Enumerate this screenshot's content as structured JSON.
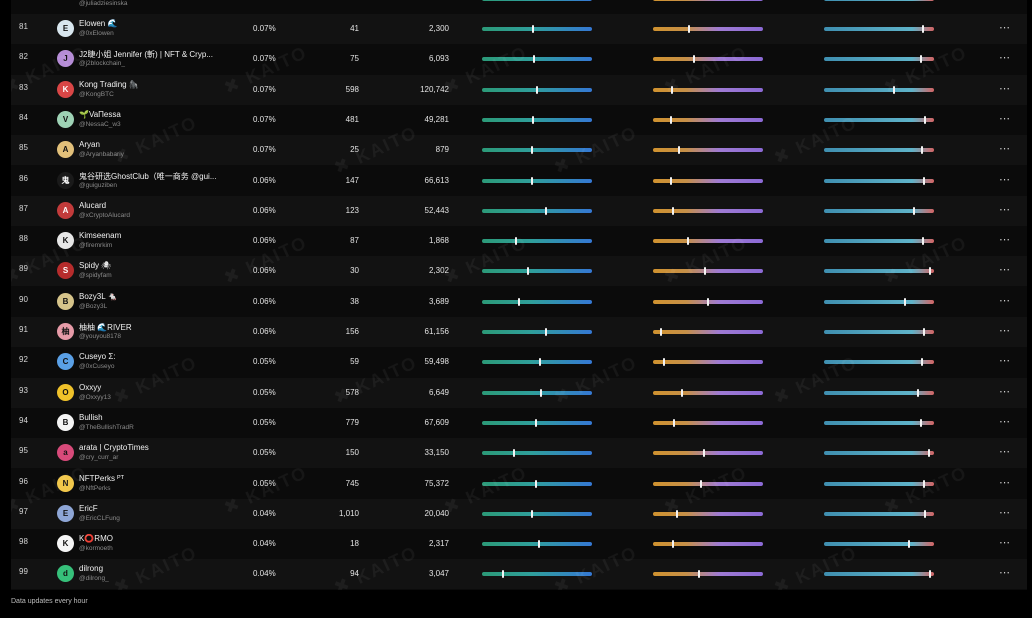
{
  "footer": {
    "note": "Data updates every hour"
  },
  "watermark": "KAITO",
  "top_partial": {
    "handle": "@juliadziesinska"
  },
  "rows": [
    {
      "rank": "81",
      "name": "Elowen 🌊",
      "handle": "@0xElowen",
      "share": "0.07%",
      "c1": "41",
      "c2": "2,300",
      "b1": 0.46,
      "b2": 0.33,
      "b3": 0.9,
      "avatar_color": "#d8e6ee",
      "avatar_glyph": "E"
    },
    {
      "rank": "82",
      "name": "J2睫小姐 Jennifer (斬) | NFT & Cryp...",
      "handle": "@j2blockchain_",
      "share": "0.07%",
      "c1": "75",
      "c2": "6,093",
      "b1": 0.47,
      "b2": 0.37,
      "b3": 0.88,
      "avatar_color": "#b58cd6",
      "avatar_glyph": "J"
    },
    {
      "rank": "83",
      "name": "Kong Trading 🦍",
      "handle": "@KongBTC",
      "share": "0.07%",
      "c1": "598",
      "c2": "120,742",
      "b1": 0.5,
      "b2": 0.17,
      "b3": 0.64,
      "avatar_color": "#d94646",
      "avatar_glyph": "K"
    },
    {
      "rank": "84",
      "name": "🌱VaΠessa",
      "handle": "@NessaC_w3",
      "share": "0.07%",
      "c1": "481",
      "c2": "49,281",
      "b1": 0.46,
      "b2": 0.16,
      "b3": 0.92,
      "avatar_color": "#9ed2b5",
      "avatar_glyph": "V"
    },
    {
      "rank": "85",
      "name": "Aryan",
      "handle": "@Aryanbabariy",
      "share": "0.07%",
      "c1": "25",
      "c2": "879",
      "b1": 0.45,
      "b2": 0.24,
      "b3": 0.89,
      "avatar_color": "#e2c07a",
      "avatar_glyph": "A"
    },
    {
      "rank": "86",
      "name": "鬼谷研选GhostClub（唯一商务 @gui...",
      "handle": "@guiguziben",
      "share": "0.06%",
      "c1": "147",
      "c2": "66,613",
      "b1": 0.45,
      "b2": 0.16,
      "b3": 0.91,
      "avatar_color": "#1a1a1a",
      "avatar_glyph": "鬼"
    },
    {
      "rank": "87",
      "name": "Alucard",
      "handle": "@xCryptoAlucard",
      "share": "0.06%",
      "c1": "123",
      "c2": "52,443",
      "b1": 0.58,
      "b2": 0.18,
      "b3": 0.82,
      "avatar_color": "#c23b3b",
      "avatar_glyph": "A"
    },
    {
      "rank": "88",
      "name": "Kimseenam",
      "handle": "@firemrkim",
      "share": "0.06%",
      "c1": "87",
      "c2": "1,868",
      "b1": 0.31,
      "b2": 0.32,
      "b3": 0.9,
      "avatar_color": "#e6e6e6",
      "avatar_glyph": "K"
    },
    {
      "rank": "89",
      "name": "Spidy 🕷",
      "handle": "@spidyfam",
      "share": "0.06%",
      "c1": "30",
      "c2": "2,302",
      "b1": 0.42,
      "b2": 0.47,
      "b3": 0.96,
      "avatar_color": "#b62c2c",
      "avatar_glyph": "S"
    },
    {
      "rank": "90",
      "name": "Bozy3L 🐁",
      "handle": "@Bozy3L",
      "share": "0.06%",
      "c1": "38",
      "c2": "3,689",
      "b1": 0.34,
      "b2": 0.5,
      "b3": 0.74,
      "avatar_color": "#d6c48a",
      "avatar_glyph": "B"
    },
    {
      "rank": "91",
      "name": "柚柚 🌊RIVER",
      "handle": "@youyou8178",
      "share": "0.06%",
      "c1": "156",
      "c2": "61,156",
      "b1": 0.58,
      "b2": 0.07,
      "b3": 0.91,
      "avatar_color": "#e79ba8",
      "avatar_glyph": "柚"
    },
    {
      "rank": "92",
      "name": "Cuseyo Σ:",
      "handle": "@0xCuseyo",
      "share": "0.05%",
      "c1": "59",
      "c2": "59,498",
      "b1": 0.53,
      "b2": 0.1,
      "b3": 0.89,
      "avatar_color": "#5aa0e6",
      "avatar_glyph": "C"
    },
    {
      "rank": "93",
      "name": "Oxxyy",
      "handle": "@Oxxyy13",
      "share": "0.05%",
      "c1": "578",
      "c2": "6,649",
      "b1": 0.54,
      "b2": 0.26,
      "b3": 0.85,
      "avatar_color": "#f0c22a",
      "avatar_glyph": "O"
    },
    {
      "rank": "94",
      "name": "Bullish",
      "handle": "@TheBullishTradR",
      "share": "0.05%",
      "c1": "779",
      "c2": "67,609",
      "b1": 0.49,
      "b2": 0.19,
      "b3": 0.88,
      "avatar_color": "#f4f4f4",
      "avatar_glyph": "B"
    },
    {
      "rank": "95",
      "name": "arata | CryptoTimes",
      "handle": "@cry_curr_ar",
      "share": "0.05%",
      "c1": "150",
      "c2": "33,150",
      "b1": 0.29,
      "b2": 0.46,
      "b3": 0.95,
      "avatar_color": "#d84a7a",
      "avatar_glyph": "a"
    },
    {
      "rank": "96",
      "name": "NFTPerks ᴾᵀ",
      "handle": "@NftPerks",
      "share": "0.05%",
      "c1": "745",
      "c2": "75,372",
      "b1": 0.49,
      "b2": 0.44,
      "b3": 0.91,
      "avatar_color": "#f2c84b",
      "avatar_glyph": "N"
    },
    {
      "rank": "97",
      "name": "EricF",
      "handle": "@EricCLFung",
      "share": "0.04%",
      "c1": "1,010",
      "c2": "20,040",
      "b1": 0.45,
      "b2": 0.22,
      "b3": 0.92,
      "avatar_color": "#8ea6d6",
      "avatar_glyph": "E"
    },
    {
      "rank": "98",
      "name": "K⭕RMO",
      "handle": "@kormoeth",
      "share": "0.04%",
      "c1": "18",
      "c2": "2,317",
      "b1": 0.52,
      "b2": 0.18,
      "b3": 0.77,
      "avatar_color": "#f5f5f5",
      "avatar_glyph": "K"
    },
    {
      "rank": "99",
      "name": "dilrong",
      "handle": "@dilrong_",
      "share": "0.04%",
      "c1": "94",
      "c2": "3,047",
      "b1": 0.19,
      "b2": 0.42,
      "b3": 0.96,
      "avatar_color": "#36c07a",
      "avatar_glyph": "d"
    }
  ]
}
